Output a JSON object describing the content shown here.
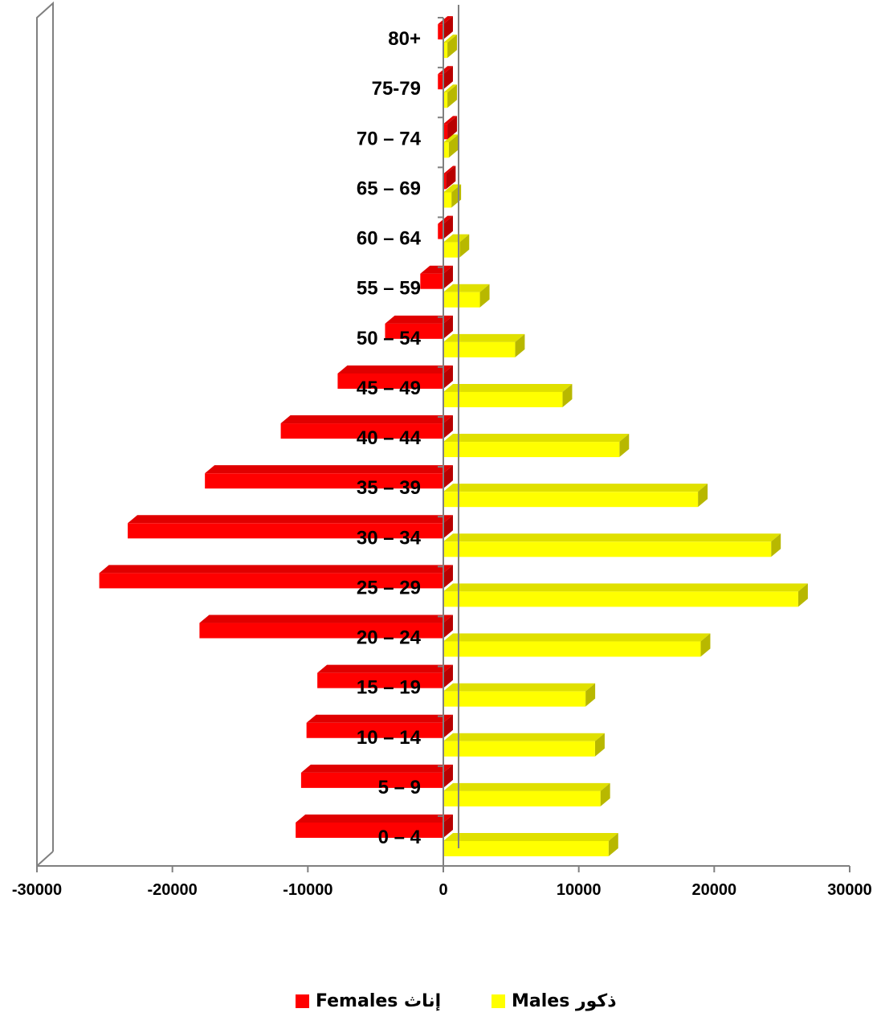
{
  "chart_data": {
    "type": "bar",
    "orientation": "horizontal",
    "categories": [
      "0 – 4",
      "5 – 9",
      "10 – 14",
      "15 – 19",
      "20 – 24",
      "25 – 29",
      "30 – 34",
      "35 – 39",
      "40 – 44",
      "45 – 49",
      "50 – 54",
      "55 – 59",
      "60 – 64",
      "65 – 69",
      "70 – 74",
      "75-79",
      "80+"
    ],
    "series": [
      {
        "name": "Females",
        "label": "Females  إناث",
        "color": "#ff0000",
        "values": [
          -11300,
          -10900,
          -10500,
          -9700,
          -18400,
          -25800,
          -23700,
          -18000,
          -12400,
          -8200,
          -4700,
          -2100,
          -800,
          -200,
          -100,
          0,
          0
        ]
      },
      {
        "name": "Males",
        "label": "Males ذكور",
        "color": "#ffff00",
        "values": [
          12200,
          11600,
          11200,
          10500,
          19000,
          26200,
          24200,
          18800,
          13000,
          8800,
          5300,
          2700,
          1200,
          600,
          400,
          300,
          300
        ]
      }
    ],
    "xlim": [
      -30000,
      30000
    ],
    "xticks": [
      "-30000",
      "-20000",
      "-10000",
      "0",
      "10000",
      "20000",
      "30000"
    ],
    "title": "",
    "xlabel": "",
    "ylabel": "",
    "grid": false,
    "legend_position": "bottom"
  }
}
